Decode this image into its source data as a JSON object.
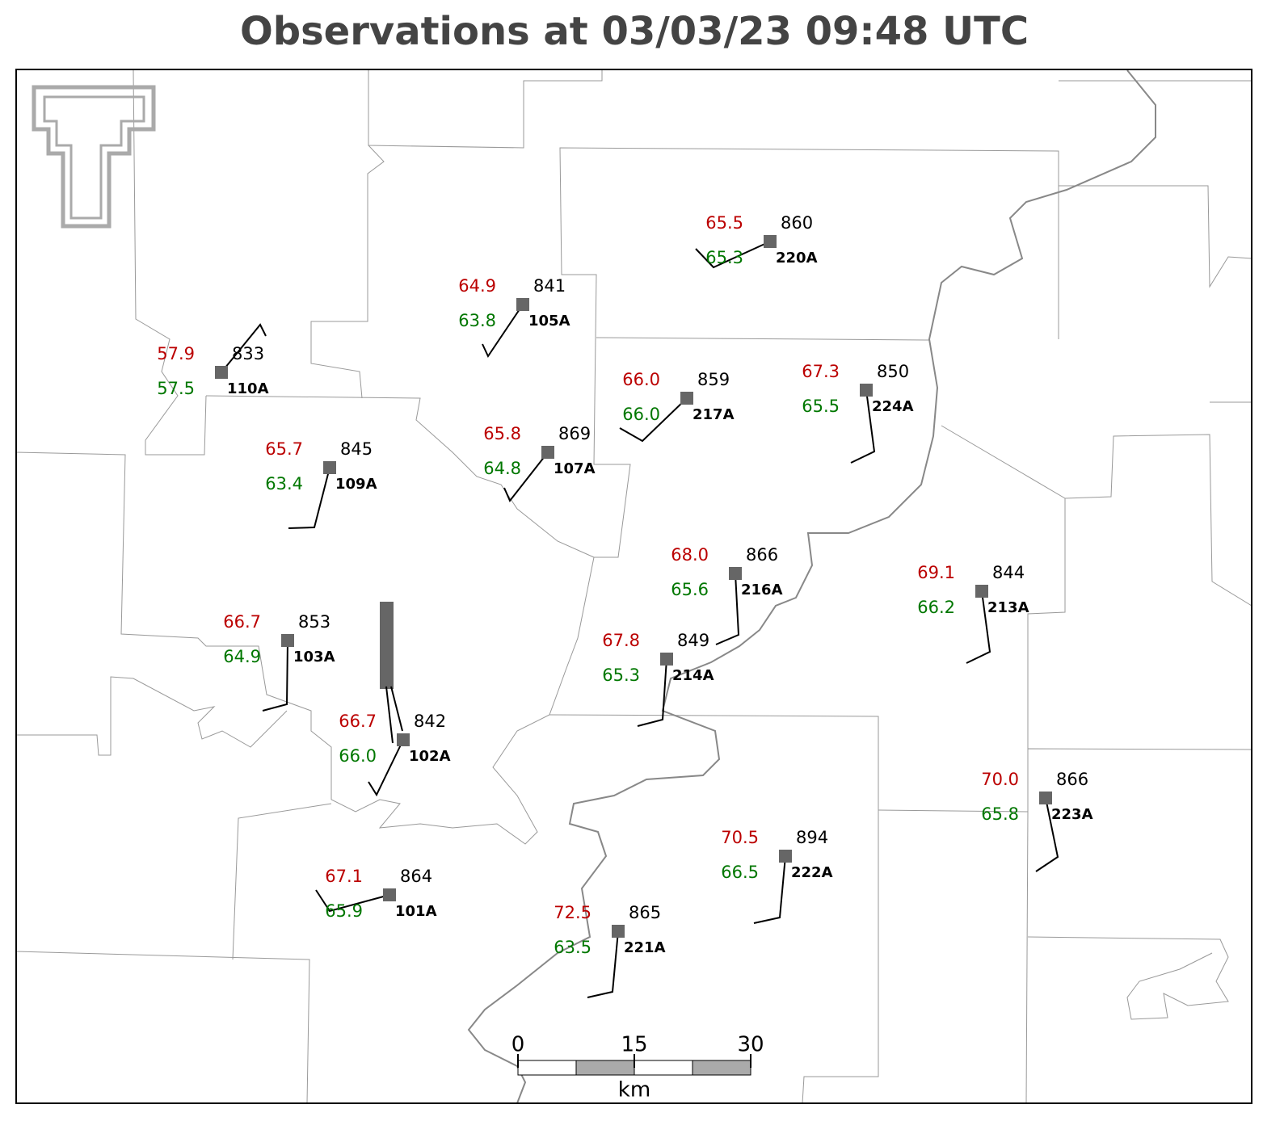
{
  "title": "Observations at 03/03/23 09:48 UTC",
  "stations": [
    {
      "id": "110A",
      "pressure": "833",
      "temperature": "57.9",
      "dewpoint": "57.5"
    },
    {
      "id": "105A",
      "pressure": "841",
      "temperature": "64.9",
      "dewpoint": "63.8"
    },
    {
      "id": "220A",
      "pressure": "860",
      "temperature": "65.5",
      "dewpoint": "65.3"
    },
    {
      "id": "217A",
      "pressure": "859",
      "temperature": "66.0",
      "dewpoint": "66.0"
    },
    {
      "id": "224A",
      "pressure": "850",
      "temperature": "67.3",
      "dewpoint": "65.5"
    },
    {
      "id": "109A",
      "pressure": "845",
      "temperature": "65.7",
      "dewpoint": "63.4"
    },
    {
      "id": "107A",
      "pressure": "869",
      "temperature": "65.8",
      "dewpoint": "64.8"
    },
    {
      "id": "216A",
      "pressure": "866",
      "temperature": "68.0",
      "dewpoint": "65.6"
    },
    {
      "id": "213A",
      "pressure": "844",
      "temperature": "69.1",
      "dewpoint": "66.2"
    },
    {
      "id": "103A",
      "pressure": "853",
      "temperature": "66.7",
      "dewpoint": "64.9"
    },
    {
      "id": "214A",
      "pressure": "849",
      "temperature": "67.8",
      "dewpoint": "65.3"
    },
    {
      "id": "102A",
      "pressure": "842",
      "temperature": "66.7",
      "dewpoint": "66.0"
    },
    {
      "id": "223A",
      "pressure": "866",
      "temperature": "70.0",
      "dewpoint": "65.8"
    },
    {
      "id": "222A",
      "pressure": "894",
      "temperature": "70.5",
      "dewpoint": "66.5"
    },
    {
      "id": "101A",
      "pressure": "864",
      "temperature": "67.1",
      "dewpoint": "65.9"
    },
    {
      "id": "221A",
      "pressure": "865",
      "temperature": "72.5",
      "dewpoint": "63.5"
    }
  ],
  "scale_bar": {
    "ticks": [
      "0",
      "15",
      "30"
    ],
    "unit": "km"
  }
}
